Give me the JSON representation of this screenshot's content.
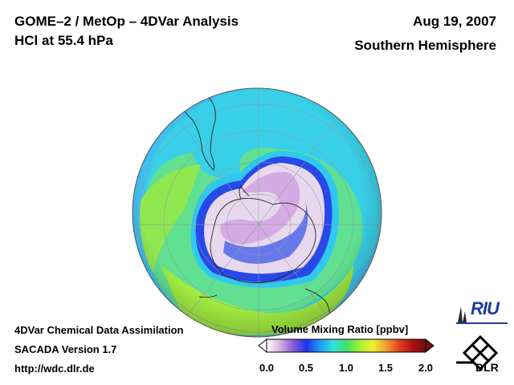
{
  "header": {
    "title_line1": "GOME–2 / MetOp – 4DVar Analysis",
    "title_line2": "HCl at 55.4 hPa",
    "date": "Aug 19, 2007",
    "region": "Southern Hemisphere"
  },
  "footer": {
    "line1": "4DVar Chemical Data Assimilation",
    "line2": "SACADA Version 1.7",
    "line3": "http://wdc.dlr.de"
  },
  "colorbar": {
    "title": "Volume Mixing Ratio [ppbv]",
    "ticks": [
      "0.0",
      "0.5",
      "1.0",
      "1.5",
      "2.0"
    ],
    "colors": [
      "#ffffff",
      "#d8b0e0",
      "#8a5cd8",
      "#2030e8",
      "#2098f8",
      "#30e0e0",
      "#40e070",
      "#a0f030",
      "#f0f030",
      "#f0a030",
      "#e04020",
      "#b01010",
      "#701010"
    ]
  },
  "logos": {
    "riu": "RIU",
    "dlr": "DLR"
  }
}
